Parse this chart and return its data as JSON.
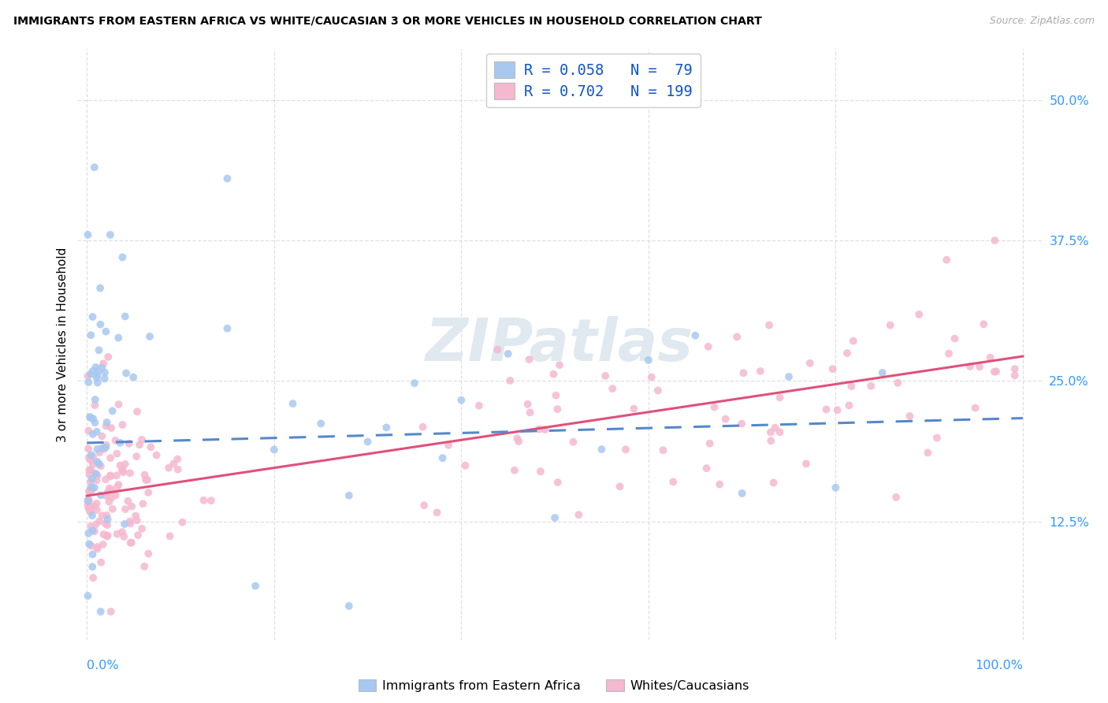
{
  "title": "IMMIGRANTS FROM EASTERN AFRICA VS WHITE/CAUCASIAN 3 OR MORE VEHICLES IN HOUSEHOLD CORRELATION CHART",
  "source": "Source: ZipAtlas.com",
  "ylabel": "3 or more Vehicles in Household",
  "ytick_values": [
    0.125,
    0.25,
    0.375,
    0.5
  ],
  "ytick_labels": [
    "12.5%",
    "25.0%",
    "37.5%",
    "50.0%"
  ],
  "xmin": -0.01,
  "xmax": 1.02,
  "ymin": 0.02,
  "ymax": 0.545,
  "watermark_text": "ZIPatlas",
  "series": [
    {
      "label": "Immigrants from Eastern Africa",
      "R": 0.058,
      "N": 79,
      "dot_color": "#a8c8f0",
      "line_color": "#5588cc",
      "line_style": "--"
    },
    {
      "label": "Whites/Caucasians",
      "R": 0.702,
      "N": 199,
      "dot_color": "#f5b8cf",
      "line_color": "#e0507a",
      "line_style": "-"
    }
  ],
  "legend_text_color": "#1155cc",
  "source_color": "#aaaaaa",
  "grid_color": "#dddddd",
  "ytick_color": "#3399ff",
  "xtick_color": "#3399ff",
  "blue_line_start_y": 0.195,
  "blue_line_end_y": 0.215,
  "pink_line_start_y": 0.148,
  "pink_line_end_y": 0.272
}
